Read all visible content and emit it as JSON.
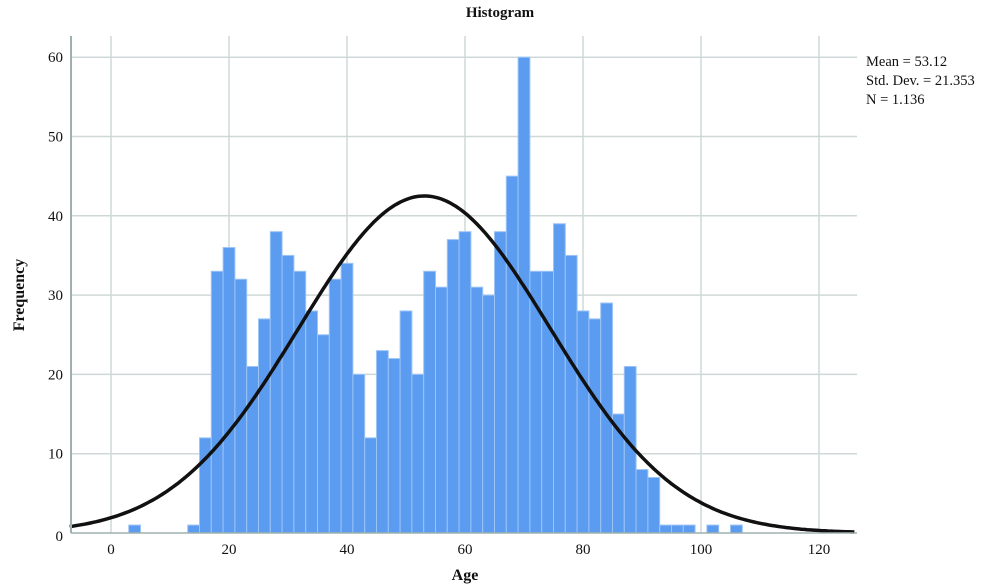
{
  "chart_data": {
    "type": "bar",
    "subtype": "histogram_with_normal_curve",
    "title": "Histogram",
    "xlabel": "Age",
    "ylabel": "Frequency",
    "xlim": [
      -7,
      126
    ],
    "ylim": [
      0,
      63
    ],
    "x_ticks": [
      0,
      20,
      40,
      60,
      80,
      100,
      120
    ],
    "y_ticks": [
      0,
      10,
      20,
      30,
      40,
      50,
      60
    ],
    "grid": true,
    "bin_width": 2,
    "bins": [
      {
        "start": 3,
        "count": 1
      },
      {
        "start": 13,
        "count": 1
      },
      {
        "start": 15,
        "count": 12
      },
      {
        "start": 17,
        "count": 33
      },
      {
        "start": 19,
        "count": 36
      },
      {
        "start": 21,
        "count": 32
      },
      {
        "start": 23,
        "count": 21
      },
      {
        "start": 25,
        "count": 27
      },
      {
        "start": 27,
        "count": 38
      },
      {
        "start": 29,
        "count": 35
      },
      {
        "start": 31,
        "count": 33
      },
      {
        "start": 33,
        "count": 28
      },
      {
        "start": 35,
        "count": 25
      },
      {
        "start": 37,
        "count": 32
      },
      {
        "start": 39,
        "count": 34
      },
      {
        "start": 41,
        "count": 20
      },
      {
        "start": 43,
        "count": 12
      },
      {
        "start": 45,
        "count": 23
      },
      {
        "start": 47,
        "count": 22
      },
      {
        "start": 49,
        "count": 28
      },
      {
        "start": 51,
        "count": 20
      },
      {
        "start": 53,
        "count": 33
      },
      {
        "start": 55,
        "count": 31
      },
      {
        "start": 57,
        "count": 37
      },
      {
        "start": 59,
        "count": 38
      },
      {
        "start": 61,
        "count": 31
      },
      {
        "start": 63,
        "count": 30
      },
      {
        "start": 65,
        "count": 38
      },
      {
        "start": 67,
        "count": 45
      },
      {
        "start": 69,
        "count": 60
      },
      {
        "start": 71,
        "count": 33
      },
      {
        "start": 73,
        "count": 33
      },
      {
        "start": 75,
        "count": 39
      },
      {
        "start": 77,
        "count": 35
      },
      {
        "start": 79,
        "count": 28
      },
      {
        "start": 81,
        "count": 27
      },
      {
        "start": 83,
        "count": 29
      },
      {
        "start": 85,
        "count": 15
      },
      {
        "start": 87,
        "count": 21
      },
      {
        "start": 89,
        "count": 8
      },
      {
        "start": 91,
        "count": 7
      },
      {
        "start": 93,
        "count": 1
      },
      {
        "start": 95,
        "count": 1
      },
      {
        "start": 97,
        "count": 1
      },
      {
        "start": 101,
        "count": 1
      },
      {
        "start": 105,
        "count": 1
      }
    ],
    "normal_curve": {
      "mean": 53.12,
      "std_dev": 21.353,
      "n": 1136,
      "peak": 42.5
    },
    "bar_color": "#5b9cf0",
    "curve_color": "#111111",
    "stats_labels": [
      "Mean = 53.12",
      "Std. Dev. = 21.353",
      "N = 1.136"
    ]
  },
  "title": "Histogram",
  "axes": {
    "x_title": "Age",
    "y_title": "Frequency",
    "x_tick_labels": [
      "0",
      "20",
      "40",
      "60",
      "80",
      "100",
      "120"
    ],
    "y_tick_labels": [
      "0",
      "10",
      "20",
      "30",
      "40",
      "50",
      "60"
    ]
  },
  "stats": {
    "mean": "Mean = 53.12",
    "std_dev": "Std. Dev. = 21.353",
    "n": "N = 1.136"
  }
}
